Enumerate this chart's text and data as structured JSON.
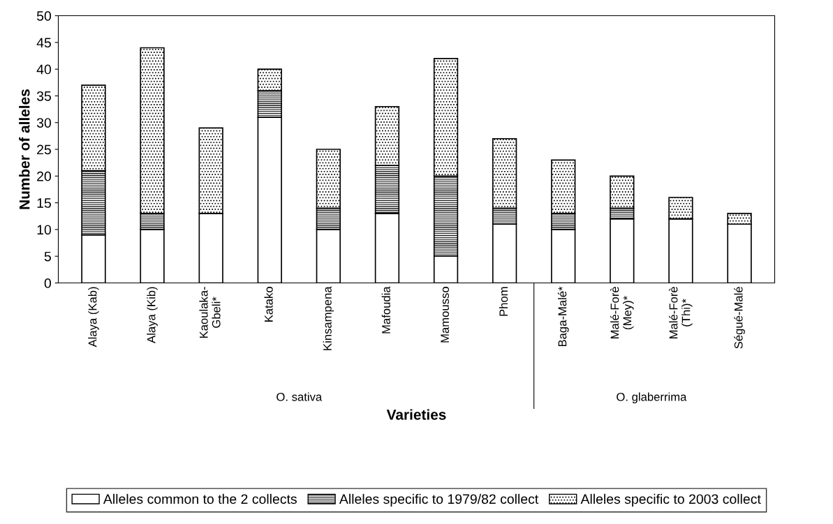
{
  "chart_data": {
    "type": "bar",
    "stacked": true,
    "xlabel": "Varieties",
    "ylabel": "Number of alleles",
    "categories": [
      "Alaya (Kab)",
      "Alaya (Kib)",
      "Kaoulaka-\nGbeli*",
      "Katako",
      "Kinsampena",
      "Mafoudia",
      "Mamousso",
      "Phom",
      "Baga-Malé*",
      "Malé-Forè\n(Mey)*",
      "Malé-Forè\n(Thi)*",
      "Ségué-Malé"
    ],
    "series": [
      {
        "name": "Alleles common to the 2 collects",
        "color": "#ffffff",
        "values": [
          9,
          10,
          13,
          31,
          10,
          13,
          5,
          11,
          10,
          12,
          12,
          11
        ]
      },
      {
        "name": "Alleles specific to 1979/82 collect",
        "color": "#000000",
        "values": [
          12,
          3,
          0,
          5,
          4,
          9,
          15,
          3,
          3,
          2,
          0,
          0
        ]
      },
      {
        "name": "Alleles specific to 2003 collect",
        "color": "#000000",
        "values": [
          16,
          31,
          16,
          4,
          11,
          11,
          22,
          13,
          10,
          6,
          4,
          2
        ]
      }
    ],
    "ylim": [
      0,
      50
    ],
    "yticks": [
      0,
      5,
      10,
      15,
      20,
      25,
      30,
      35,
      40,
      45,
      50
    ],
    "annotations": [
      "O. sativa",
      "O. glaberrima"
    ],
    "legend": "bottom",
    "grid": false
  }
}
